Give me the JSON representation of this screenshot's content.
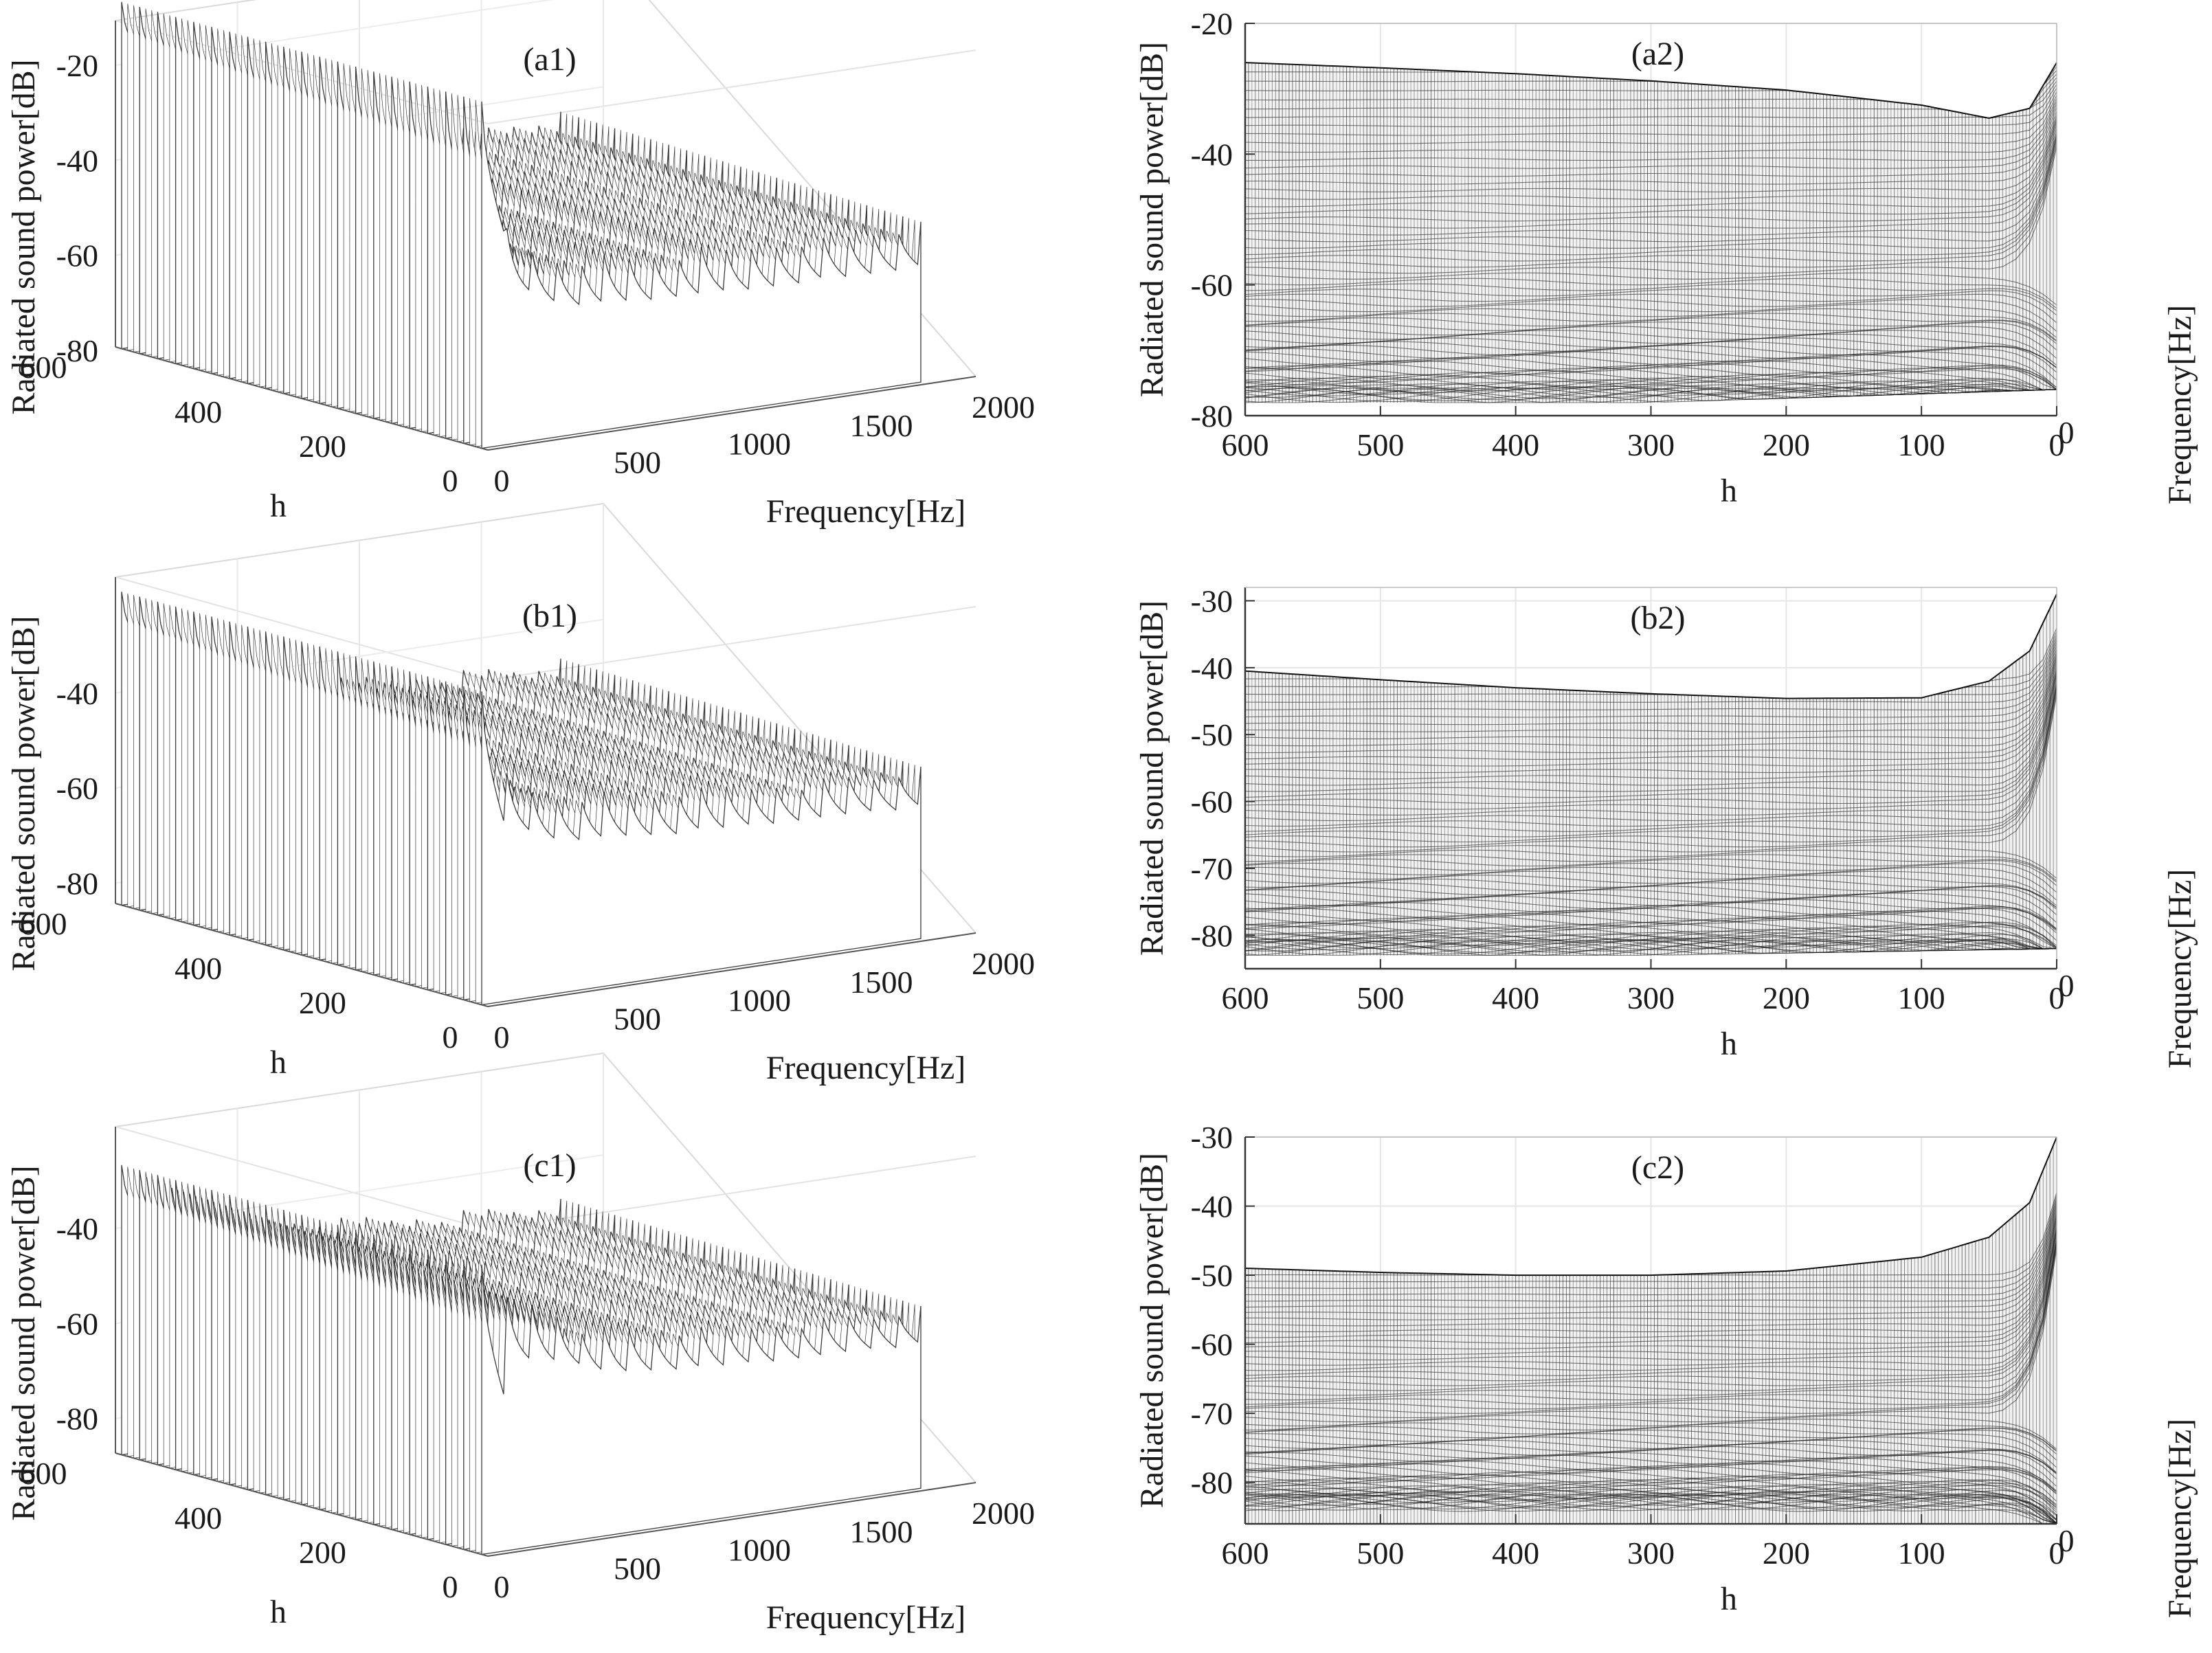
{
  "chart_data": [
    {
      "id": "a1",
      "type": "surface3d",
      "title": "(a1)",
      "xlabel": "h",
      "ylabel": "Frequency[Hz]",
      "zlabel": "Radiated sound power[dB]",
      "x_ticks": [
        "600",
        "400",
        "200",
        "0"
      ],
      "y_ticks": [
        "0",
        "500",
        "1000",
        "1500",
        "2000"
      ],
      "z_ticks": [
        "-20",
        "-40",
        "-60",
        "-80"
      ],
      "xlim": [
        0,
        600
      ],
      "ylim": [
        0,
        2000
      ],
      "zlim": [
        -80,
        -20
      ],
      "ridge_peaks_db": [
        -28,
        -50,
        -56,
        -59,
        -60,
        -61,
        -62,
        -62,
        -63,
        -63,
        -64,
        -64,
        -64,
        -64,
        -65,
        -65,
        -65,
        -65
      ]
    },
    {
      "id": "a2",
      "type": "surface_side_view",
      "title": "(a2)",
      "xlabel": "h",
      "ylabel": "Radiated sound power[dB]",
      "side_label": "Frequency[Hz]",
      "x_ticks": [
        "600",
        "500",
        "400",
        "300",
        "200",
        "100",
        "0"
      ],
      "y_ticks": [
        "-20",
        "-40",
        "-60",
        "-80"
      ],
      "side_tick": "0",
      "xlim": [
        600,
        0
      ],
      "ylim": [
        -80,
        -20
      ],
      "upper_envelope": {
        "h": [
          600,
          500,
          400,
          300,
          200,
          100,
          50,
          20,
          0
        ],
        "db": [
          -26,
          -26.8,
          -27.7,
          -28.8,
          -30.2,
          -32.5,
          -34.5,
          -33,
          -26
        ]
      },
      "lower_envelope": {
        "h": [
          600,
          300,
          0
        ],
        "db": [
          -78,
          -78,
          -76
        ]
      }
    },
    {
      "id": "b1",
      "type": "surface3d",
      "title": "(b1)",
      "xlabel": "h",
      "ylabel": "Frequency[Hz]",
      "zlabel": "Radiated sound power[dB]",
      "x_ticks": [
        "600",
        "400",
        "200",
        "0"
      ],
      "y_ticks": [
        "0",
        "500",
        "1000",
        "1500",
        "2000"
      ],
      "z_ticks": [
        "-40",
        "-60",
        "-80"
      ],
      "xlim": [
        0,
        600
      ],
      "ylim": [
        0,
        2000
      ],
      "zlim": [
        -85,
        -25
      ],
      "ridge_peaks_db": [
        -40,
        -53,
        -58,
        -60,
        -61,
        -62,
        -63,
        -64,
        -64,
        -65,
        -65,
        -66,
        -66,
        -67,
        -67,
        -67,
        -68,
        -68
      ]
    },
    {
      "id": "b2",
      "type": "surface_side_view",
      "title": "(b2)",
      "xlabel": "h",
      "ylabel": "Radiated sound power[dB]",
      "side_label": "Frequency[Hz]",
      "x_ticks": [
        "600",
        "500",
        "400",
        "300",
        "200",
        "100",
        "0"
      ],
      "y_ticks": [
        "-30",
        "-40",
        "-50",
        "-60",
        "-70",
        "-80"
      ],
      "side_tick": "0",
      "xlim": [
        600,
        0
      ],
      "ylim": [
        -85,
        -28
      ],
      "upper_envelope": {
        "h": [
          600,
          500,
          400,
          300,
          200,
          100,
          50,
          20,
          0
        ],
        "db": [
          -40.5,
          -41.8,
          -43,
          -43.9,
          -44.6,
          -44.5,
          -42,
          -37.5,
          -29
        ]
      },
      "lower_envelope": {
        "h": [
          600,
          300,
          0
        ],
        "db": [
          -83,
          -83,
          -82
        ]
      }
    },
    {
      "id": "c1",
      "type": "surface3d",
      "title": "(c1)",
      "xlabel": "h",
      "ylabel": "Frequency[Hz]",
      "zlabel": "Radiated sound power[dB]",
      "x_ticks": [
        "600",
        "400",
        "200",
        "0"
      ],
      "y_ticks": [
        "0",
        "500",
        "1000",
        "1500",
        "2000"
      ],
      "z_ticks": [
        "-40",
        "-60",
        "-80"
      ],
      "xlim": [
        0,
        600
      ],
      "ylim": [
        0,
        2000
      ],
      "zlim": [
        -88,
        -28
      ],
      "ridge_peaks_db": [
        -48,
        -50,
        -52,
        -55,
        -60,
        -62,
        -63,
        -64,
        -65,
        -66,
        -66,
        -67,
        -67,
        -68,
        -68,
        -68,
        -69,
        -69
      ]
    },
    {
      "id": "c2",
      "type": "surface_side_view",
      "title": "(c2)",
      "xlabel": "h",
      "ylabel": "Radiated sound power[dB]",
      "side_label": "Frequency[Hz]",
      "x_ticks": [
        "600",
        "500",
        "400",
        "300",
        "200",
        "100",
        "0"
      ],
      "y_ticks": [
        "-30",
        "-40",
        "-50",
        "-60",
        "-70",
        "-80"
      ],
      "side_tick": "0",
      "xlim": [
        600,
        0
      ],
      "ylim": [
        -86,
        -30
      ],
      "upper_envelope": {
        "h": [
          600,
          500,
          400,
          300,
          200,
          100,
          50,
          20,
          0
        ],
        "db": [
          -49,
          -49.6,
          -50,
          -50,
          -49.4,
          -47.4,
          -44.5,
          -39.5,
          -30
        ]
      },
      "lower_envelope": {
        "h": [
          600,
          300,
          0
        ],
        "db": [
          -86,
          -86,
          -86
        ]
      }
    }
  ]
}
